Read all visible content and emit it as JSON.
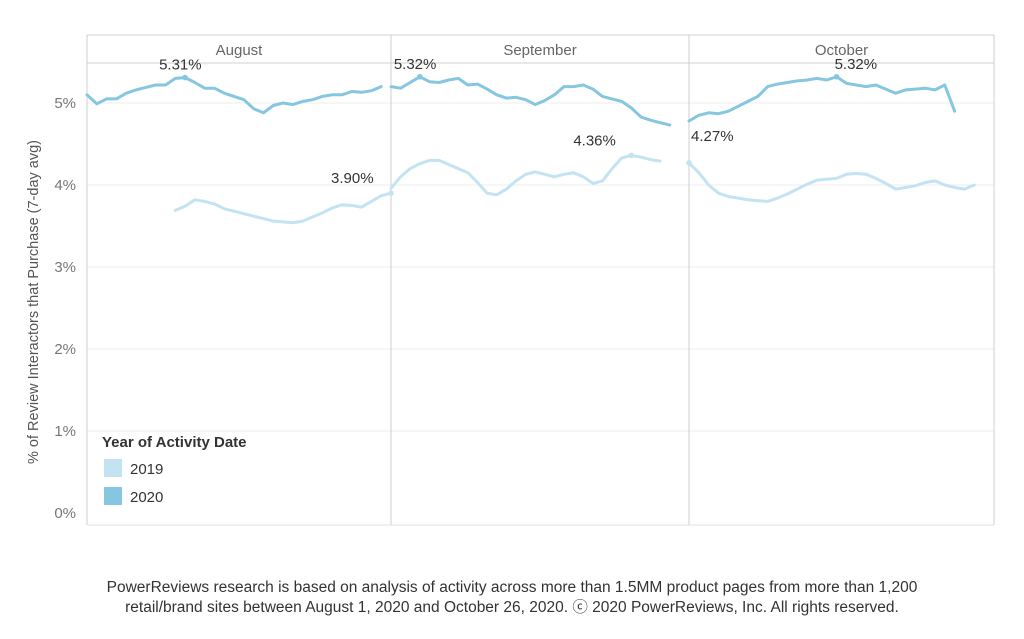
{
  "chart_data": {
    "type": "line",
    "ylabel": "% of Review Interactors that Purchase (7-day avg)",
    "y_ticks": [
      "0%",
      "1%",
      "2%",
      "3%",
      "4%",
      "5%"
    ],
    "ylim": [
      0,
      5.8
    ],
    "grid": "horizontal",
    "legend": {
      "title": "Year of Activity Date",
      "placement": "bottom-left",
      "items": [
        {
          "name": "2019",
          "color": "#c3e3f2"
        },
        {
          "name": "2020",
          "color": "#86c6e0"
        }
      ]
    },
    "panels": [
      {
        "title": "August",
        "series": [
          {
            "name": "2020",
            "start_day": 1,
            "values": [
              5.1,
              4.99,
              5.05,
              5.05,
              5.12,
              5.16,
              5.19,
              5.22,
              5.22,
              5.3,
              5.31,
              5.25,
              5.18,
              5.18,
              5.12,
              5.08,
              5.04,
              4.93,
              4.88,
              4.97,
              5.0,
              4.98,
              5.02,
              5.04,
              5.08,
              5.1,
              5.1,
              5.14,
              5.13,
              5.15,
              5.2
            ]
          },
          {
            "name": "2019",
            "start_day": 10,
            "values": [
              3.69,
              3.74,
              3.82,
              3.8,
              3.77,
              3.71,
              3.68,
              3.65,
              3.62,
              3.59,
              3.56,
              3.55,
              3.54,
              3.56,
              3.61,
              3.66,
              3.72,
              3.76,
              3.75,
              3.73,
              3.8,
              3.87,
              3.9
            ]
          }
        ]
      },
      {
        "title": "September",
        "series": [
          {
            "name": "2020",
            "start_day": 1,
            "values": [
              5.2,
              5.18,
              5.25,
              5.32,
              5.26,
              5.25,
              5.28,
              5.3,
              5.22,
              5.23,
              5.17,
              5.1,
              5.06,
              5.07,
              5.04,
              4.98,
              5.03,
              5.1,
              5.2,
              5.2,
              5.22,
              5.17,
              5.08,
              5.05,
              5.02,
              4.94,
              4.83,
              4.79,
              4.76,
              4.73
            ]
          },
          {
            "name": "2019",
            "start_day": 1,
            "values": [
              3.96,
              4.1,
              4.2,
              4.26,
              4.3,
              4.3,
              4.25,
              4.2,
              4.15,
              4.03,
              3.9,
              3.88,
              3.95,
              4.05,
              4.13,
              4.16,
              4.13,
              4.1,
              4.13,
              4.15,
              4.1,
              4.02,
              4.05,
              4.2,
              4.33,
              4.36,
              4.34,
              4.31,
              4.29
            ]
          }
        ]
      },
      {
        "title": "October",
        "series": [
          {
            "name": "2020",
            "start_day": 1,
            "values": [
              4.78,
              4.85,
              4.88,
              4.87,
              4.9,
              4.96,
              5.02,
              5.08,
              5.2,
              5.23,
              5.25,
              5.27,
              5.28,
              5.3,
              5.28,
              5.32,
              5.24,
              5.22,
              5.2,
              5.22,
              5.17,
              5.12,
              5.16,
              5.17,
              5.18,
              5.16,
              5.22,
              4.9
            ]
          },
          {
            "name": "2019",
            "start_day": 1,
            "values": [
              4.27,
              4.15,
              4.0,
              3.9,
              3.86,
              3.84,
              3.82,
              3.81,
              3.8,
              3.84,
              3.89,
              3.95,
              4.01,
              4.06,
              4.07,
              4.08,
              4.13,
              4.14,
              4.13,
              4.08,
              4.02,
              3.95,
              3.97,
              3.99,
              4.03,
              4.05,
              4.0,
              3.97,
              3.95,
              4.0
            ]
          }
        ]
      }
    ],
    "annotations": [
      {
        "panel": 0,
        "series": "2020",
        "day": 11,
        "value": 5.31,
        "text": "5.31%"
      },
      {
        "panel": 0,
        "series": "2019",
        "day": 32,
        "value": 3.9,
        "text": "3.90%"
      },
      {
        "panel": 1,
        "series": "2020",
        "day": 4,
        "value": 5.32,
        "text": "5.32%"
      },
      {
        "panel": 1,
        "series": "2019",
        "day": 26,
        "value": 4.36,
        "text": "4.36%"
      },
      {
        "panel": 2,
        "series": "2019",
        "day": 1,
        "value": 4.27,
        "text": "4.27%"
      },
      {
        "panel": 2,
        "series": "2020",
        "day": 16,
        "value": 5.32,
        "text": "5.32%"
      }
    ]
  },
  "footnote": {
    "line1": "PowerReviews research is based on analysis of activity across more than 1.5MM product pages from more than 1,200",
    "line2": "retail/brand sites between August 1,  2020 and October 26, 2020. ⓒ 2020 PowerReviews, Inc. All rights reserved."
  }
}
